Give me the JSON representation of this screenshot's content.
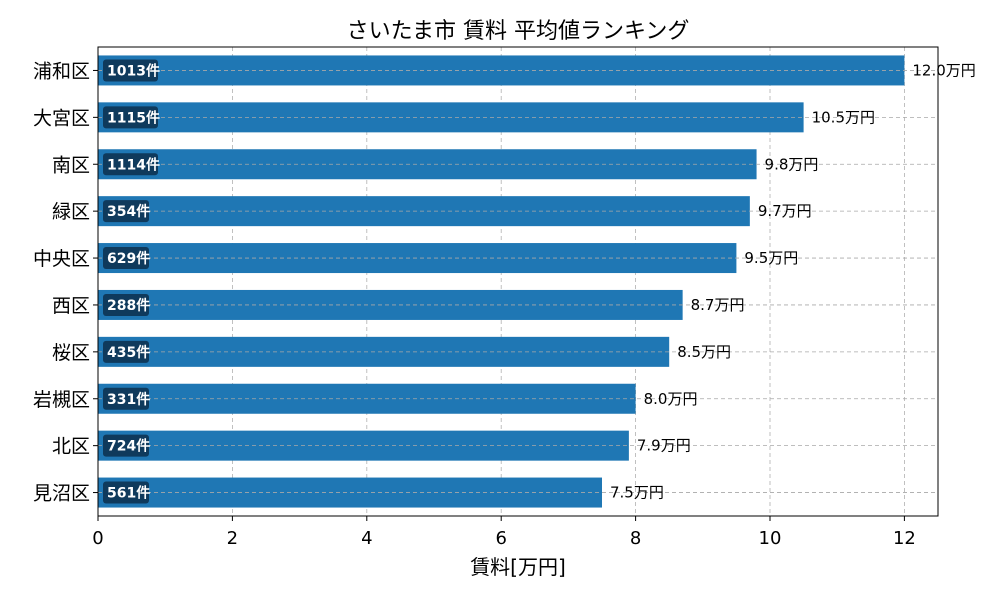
{
  "chart_data": {
    "type": "bar",
    "orientation": "horizontal",
    "title": "さいたま市 賃料 平均値ランキング",
    "xlabel": "賃料[万円]",
    "ylabel": "",
    "xlim": [
      0,
      12.5
    ],
    "xticks": [
      0,
      2,
      4,
      6,
      8,
      10,
      12
    ],
    "grid": true,
    "bar_color": "#1f77b4",
    "badge_color": "#0f3a5c",
    "categories": [
      "浦和区",
      "大宮区",
      "南区",
      "緑区",
      "中央区",
      "西区",
      "桜区",
      "岩槻区",
      "北区",
      "見沼区"
    ],
    "values": [
      12.0,
      10.5,
      9.8,
      9.7,
      9.5,
      8.7,
      8.5,
      8.0,
      7.9,
      7.5
    ],
    "value_labels": [
      "12.0万円",
      "10.5万円",
      "9.8万円",
      "9.7万円",
      "9.5万円",
      "8.7万円",
      "8.5万円",
      "8.0万円",
      "7.9万円",
      "7.5万円"
    ],
    "counts": [
      "1013件",
      "1115件",
      "1114件",
      "354件",
      "629件",
      "288件",
      "435件",
      "331件",
      "724件",
      "561件"
    ]
  }
}
